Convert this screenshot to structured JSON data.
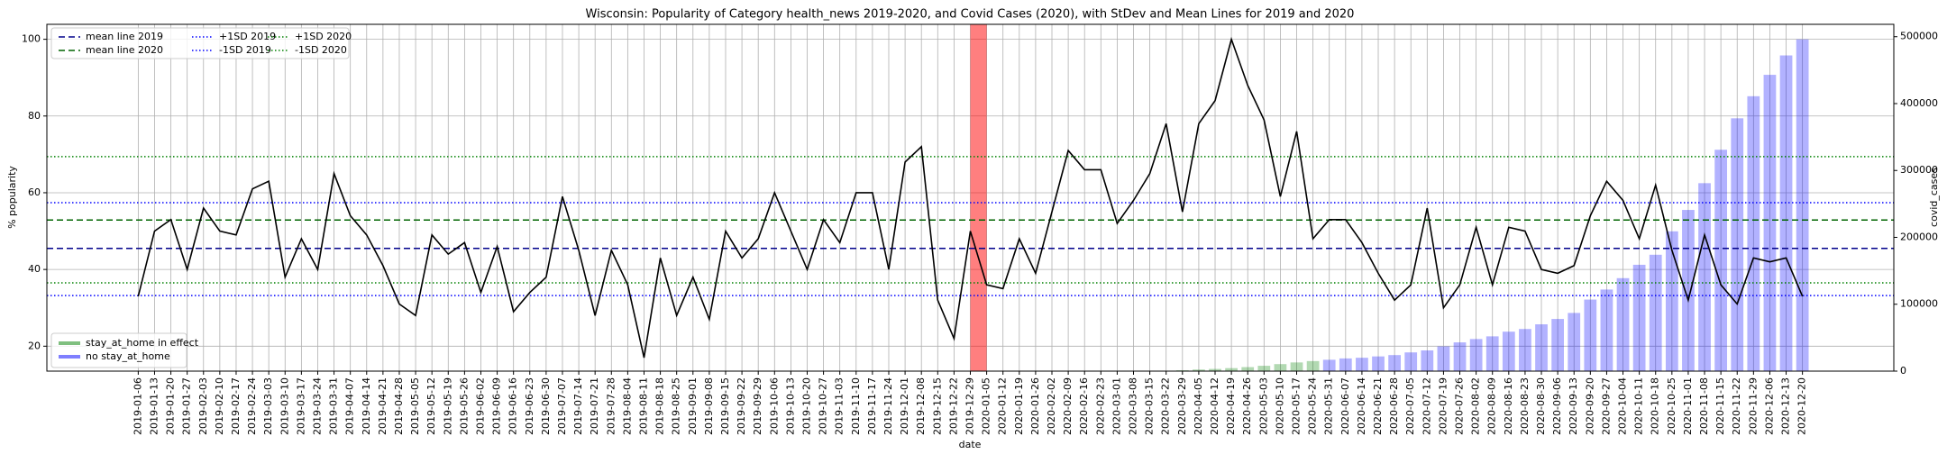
{
  "chart_data": {
    "type": "combo",
    "title": "Wisconsin: Popularity of Category health_news 2019-2020, and Covid Cases (2020), with StDev and Mean Lines for 2019 and 2020",
    "xlabel": "date",
    "ylabel": "% popularity",
    "y2label": "covid_cases",
    "categories": [
      "2019-01-06",
      "2019-01-13",
      "2019-01-20",
      "2019-01-27",
      "2019-02-03",
      "2019-02-10",
      "2019-02-17",
      "2019-02-24",
      "2019-03-03",
      "2019-03-10",
      "2019-03-17",
      "2019-03-24",
      "2019-03-31",
      "2019-04-07",
      "2019-04-14",
      "2019-04-21",
      "2019-04-28",
      "2019-05-05",
      "2019-05-12",
      "2019-05-19",
      "2019-05-26",
      "2019-06-02",
      "2019-06-09",
      "2019-06-16",
      "2019-06-23",
      "2019-06-30",
      "2019-07-07",
      "2019-07-14",
      "2019-07-21",
      "2019-07-28",
      "2019-08-04",
      "2019-08-11",
      "2019-08-18",
      "2019-08-25",
      "2019-09-01",
      "2019-09-08",
      "2019-09-15",
      "2019-09-22",
      "2019-09-29",
      "2019-10-06",
      "2019-10-13",
      "2019-10-20",
      "2019-10-27",
      "2019-11-03",
      "2019-11-10",
      "2019-11-17",
      "2019-11-24",
      "2019-12-01",
      "2019-12-08",
      "2019-12-15",
      "2019-12-22",
      "2019-12-29",
      "2020-01-05",
      "2020-01-12",
      "2020-01-19",
      "2020-01-26",
      "2020-02-02",
      "2020-02-09",
      "2020-02-16",
      "2020-02-23",
      "2020-03-01",
      "2020-03-08",
      "2020-03-15",
      "2020-03-22",
      "2020-03-29",
      "2020-04-05",
      "2020-04-12",
      "2020-04-19",
      "2020-04-26",
      "2020-05-03",
      "2020-05-10",
      "2020-05-17",
      "2020-05-24",
      "2020-05-31",
      "2020-06-07",
      "2020-06-14",
      "2020-06-21",
      "2020-06-28",
      "2020-07-05",
      "2020-07-12",
      "2020-07-19",
      "2020-07-26",
      "2020-08-02",
      "2020-08-09",
      "2020-08-16",
      "2020-08-23",
      "2020-08-30",
      "2020-09-06",
      "2020-09-13",
      "2020-09-20",
      "2020-09-27",
      "2020-10-04",
      "2020-10-11",
      "2020-10-18",
      "2020-10-25",
      "2020-11-01",
      "2020-11-08",
      "2020-11-15",
      "2020-11-22",
      "2020-11-29",
      "2020-12-06",
      "2020-12-13",
      "2020-12-20"
    ],
    "series": [
      {
        "type": "line",
        "color": "#000000",
        "values": [
          33,
          50,
          53,
          40,
          56,
          50,
          49,
          61,
          63,
          38,
          48,
          40,
          65,
          54,
          49,
          41,
          31,
          28,
          49,
          44,
          47,
          34,
          46,
          29,
          34,
          38,
          59,
          45,
          28,
          45,
          36,
          17,
          43,
          28,
          38,
          27,
          50,
          43,
          48,
          60,
          50,
          40,
          53,
          47,
          60,
          60,
          40,
          68,
          72,
          32,
          22,
          50,
          36,
          35,
          48,
          39,
          55,
          71,
          66,
          66,
          52,
          58,
          65,
          78,
          55,
          78,
          84,
          100,
          88,
          79,
          59,
          76,
          48,
          53,
          53,
          47,
          39,
          32,
          36,
          56,
          30,
          36,
          51,
          36,
          51,
          50,
          40,
          39,
          41,
          54,
          63,
          58,
          48,
          62,
          45,
          32,
          49,
          36,
          31,
          43,
          42,
          43,
          33
        ]
      },
      {
        "type": "bar",
        "name": "stay_at_home in effect",
        "color": "#008000",
        "axis": "y2",
        "values": [
          null,
          null,
          null,
          null,
          null,
          null,
          null,
          null,
          null,
          null,
          null,
          null,
          null,
          null,
          null,
          null,
          null,
          null,
          null,
          null,
          null,
          null,
          null,
          null,
          null,
          null,
          null,
          null,
          null,
          null,
          null,
          null,
          null,
          null,
          null,
          null,
          null,
          null,
          null,
          null,
          null,
          null,
          null,
          null,
          null,
          null,
          null,
          null,
          null,
          null,
          null,
          null,
          null,
          null,
          null,
          null,
          null,
          null,
          null,
          null,
          null,
          null,
          null,
          null,
          1300,
          2400,
          3300,
          4500,
          6000,
          8000,
          10500,
          13000,
          15000,
          null,
          null,
          null,
          null,
          null,
          null,
          null,
          null,
          null,
          null,
          null,
          null,
          null,
          null,
          null,
          null,
          null,
          null,
          null,
          null,
          null,
          null,
          null,
          null,
          null,
          null,
          null,
          null,
          null,
          null
        ]
      },
      {
        "type": "bar",
        "name": "no stay_at_home",
        "color": "#0000ff",
        "axis": "y2",
        "values": [
          null,
          null,
          null,
          null,
          null,
          null,
          null,
          null,
          null,
          null,
          null,
          null,
          null,
          null,
          null,
          null,
          null,
          null,
          null,
          null,
          null,
          null,
          null,
          null,
          null,
          null,
          null,
          null,
          null,
          null,
          null,
          null,
          null,
          null,
          null,
          null,
          null,
          null,
          null,
          null,
          null,
          null,
          null,
          null,
          null,
          null,
          null,
          null,
          null,
          null,
          null,
          null,
          null,
          null,
          null,
          null,
          null,
          null,
          null,
          null,
          null,
          null,
          null,
          null,
          null,
          null,
          null,
          null,
          null,
          null,
          null,
          null,
          null,
          17000,
          19000,
          20000,
          22000,
          24000,
          28000,
          31000,
          37000,
          43000,
          48000,
          52000,
          59000,
          63000,
          70000,
          78000,
          87000,
          107000,
          122000,
          139000,
          159000,
          174000,
          209000,
          241000,
          281000,
          331000,
          378000,
          411000,
          443000,
          472000,
          496000
        ]
      }
    ],
    "hlines": [
      {
        "name": "mean line 2019",
        "value": 45.5,
        "color": "#00008b",
        "style": "dashed"
      },
      {
        "name": "mean line 2020",
        "value": 52.9,
        "color": "#006400",
        "style": "dashed"
      },
      {
        "name": "+1SD 2019",
        "value": 57.4,
        "color": "#0000ff",
        "style": "dotted"
      },
      {
        "name": "-1SD 2019",
        "value": 33.2,
        "color": "#0000ff",
        "style": "dotted"
      },
      {
        "name": "+1SD 2020",
        "value": 69.4,
        "color": "#008000",
        "style": "dotted"
      },
      {
        "name": "-1SD 2020",
        "value": 36.5,
        "color": "#008000",
        "style": "dotted"
      }
    ],
    "span": {
      "from": "2019-12-29",
      "to": "2020-01-05",
      "color": "#ff0000"
    },
    "ylim": [
      13.5,
      103.9
    ],
    "yticks": [
      20,
      40,
      60,
      80,
      100
    ],
    "y2lim": [
      0,
      518500
    ],
    "y2ticks": [
      0,
      100000,
      200000,
      300000,
      400000,
      500000
    ],
    "grid": true,
    "line_legend": "upper left",
    "bar_legend": "lower left"
  }
}
